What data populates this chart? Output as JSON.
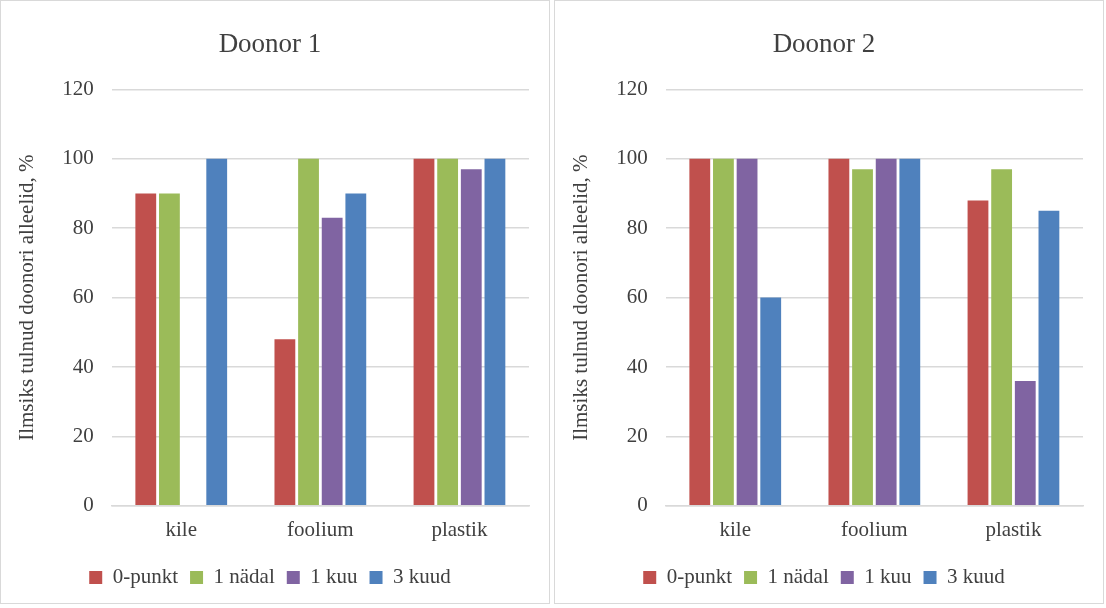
{
  "chart_data": [
    {
      "type": "bar",
      "title": "Doonor 1",
      "ylabel": "Ilmsiks tulnud doonori alleelid, %",
      "categories": [
        "kile",
        "foolium",
        "plastik"
      ],
      "series": [
        {
          "name": "0-punkt",
          "color": "#c0504d",
          "values": [
            90,
            48,
            100
          ]
        },
        {
          "name": "1 nädal",
          "color": "#9bbb59",
          "values": [
            90,
            100,
            100
          ]
        },
        {
          "name": "1 kuu",
          "color": "#8064a2",
          "values": [
            0,
            83,
            97
          ]
        },
        {
          "name": "3 kuud",
          "color": "#4f81bd",
          "values": [
            100,
            90,
            100
          ]
        }
      ],
      "ylim": [
        0,
        120
      ],
      "yticks": [
        0,
        20,
        40,
        60,
        80,
        100,
        120
      ],
      "grid": "y",
      "legend": "bottom"
    },
    {
      "type": "bar",
      "title": "Doonor 2",
      "ylabel": "Ilmsiks tulnud doonori alleelid, %",
      "categories": [
        "kile",
        "foolium",
        "plastik"
      ],
      "series": [
        {
          "name": "0-punkt",
          "color": "#c0504d",
          "values": [
            100,
            100,
            88
          ]
        },
        {
          "name": "1 nädal",
          "color": "#9bbb59",
          "values": [
            100,
            97,
            97
          ]
        },
        {
          "name": "1 kuu",
          "color": "#8064a2",
          "values": [
            100,
            100,
            36
          ]
        },
        {
          "name": "3 kuud",
          "color": "#4f81bd",
          "values": [
            60,
            100,
            85
          ]
        }
      ],
      "ylim": [
        0,
        120
      ],
      "yticks": [
        0,
        20,
        40,
        60,
        80,
        100,
        120
      ],
      "grid": "y",
      "legend": "bottom"
    }
  ]
}
